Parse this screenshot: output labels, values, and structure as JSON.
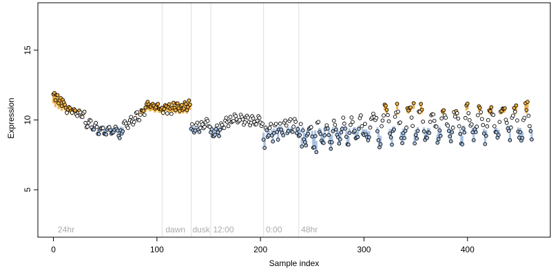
{
  "chart_data": {
    "type": "scatter",
    "xlabel": "Sample index",
    "ylabel": "Expression",
    "xlim": [
      -15,
      480
    ],
    "ylim": [
      1.6,
      18.4
    ],
    "x_ticks": [
      0,
      100,
      200,
      300,
      400
    ],
    "y_ticks": [
      5,
      10,
      15
    ],
    "grid": false,
    "legend": "none",
    "colors": {
      "points_stroke": "#000000",
      "fill_white": "#ffffff",
      "fill_orange": "#f5b041",
      "fill_blue": "#a9c4e6",
      "stem_orange": "#e8a93a",
      "stem_blue": "#9fb8dc",
      "separator": "#dddddd",
      "phase_label": "#aaaaaa"
    },
    "baseline": 10,
    "phase_separators": [
      105,
      133,
      152,
      203,
      237
    ],
    "phase_labels": [
      {
        "x": 3,
        "text": "24hr"
      },
      {
        "x": 107,
        "text": "dawn"
      },
      {
        "x": 133,
        "text": "dusk"
      },
      {
        "x": 153,
        "text": "12:00"
      },
      {
        "x": 204,
        "text": "0:00"
      },
      {
        "x": 238,
        "text": "48hr"
      }
    ],
    "segments": [
      {
        "from": 0,
        "to": 10,
        "start": 11.8,
        "end": 11.1,
        "amp": 0.3,
        "period": 3
      },
      {
        "from": 11,
        "to": 30,
        "start": 10.9,
        "end": 10.3,
        "amp": 0.25,
        "period": 5
      },
      {
        "from": 31,
        "to": 45,
        "start": 9.9,
        "end": 9.2,
        "amp": 0.3,
        "period": 6
      },
      {
        "from": 46,
        "to": 65,
        "start": 9.2,
        "end": 9.3,
        "amp": 0.3,
        "period": 7
      },
      {
        "from": 66,
        "to": 88,
        "start": 9.4,
        "end": 10.6,
        "amp": 0.35,
        "period": 6
      },
      {
        "from": 89,
        "to": 104,
        "start": 11.1,
        "end": 10.9,
        "amp": 0.2,
        "period": 5
      },
      {
        "from": 105,
        "to": 132,
        "start": 10.8,
        "end": 11.0,
        "amp": 0.3,
        "period": 4
      },
      {
        "from": 133,
        "to": 151,
        "start": 9.3,
        "end": 9.8,
        "amp": 0.35,
        "period": 5
      },
      {
        "from": 152,
        "to": 170,
        "start": 8.9,
        "end": 10.0,
        "amp": 0.4,
        "period": 5
      },
      {
        "from": 171,
        "to": 202,
        "start": 10.1,
        "end": 9.9,
        "amp": 0.3,
        "period": 6
      },
      {
        "from": 203,
        "to": 236,
        "start": 9.0,
        "end": 9.6,
        "amp": 0.5,
        "period": 5
      },
      {
        "from": 237,
        "to": 300,
        "start": 8.8,
        "end": 9.3,
        "amp": 0.8,
        "period": 9
      },
      {
        "from": 301,
        "to": 462,
        "start": 9.6,
        "end": 9.9,
        "amp": 1.1,
        "period": 13
      }
    ],
    "outliers": [
      {
        "x": 204,
        "y": 8.0
      },
      {
        "x": 254,
        "y": 7.7
      },
      {
        "x": 64,
        "y": 8.7
      },
      {
        "x": 348,
        "y": 11.2
      },
      {
        "x": 240,
        "y": 8.1
      }
    ]
  }
}
